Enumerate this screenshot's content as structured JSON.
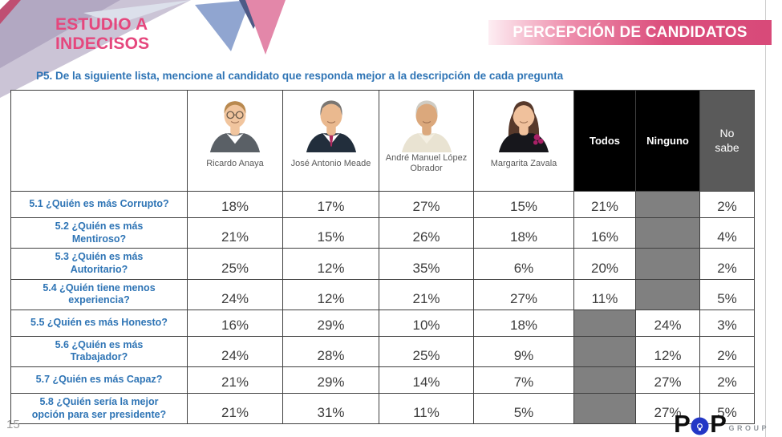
{
  "slide": {
    "kicker_line1": "ESTUDIO A",
    "kicker_line2": "INDECISOS",
    "banner_title": "PERCEPCIÓN DE CANDIDATOS",
    "question": "P5. De la siguiente lista, mencione al candidato que responda mejor a la descripción de cada pregunta",
    "page_number": "15",
    "logo": {
      "p1": "P",
      "p2": "P",
      "suffix": "GROUP"
    },
    "colors": {
      "brand_pink": "#DB4E7C",
      "kicker_pink": "#E5477D",
      "text_blue": "#2E74B5",
      "black_header": "#000000",
      "gray_header": "#5A5A5A",
      "muted_cell": "#808080",
      "logo_blue": "#2337C6"
    }
  },
  "table": {
    "candidates": [
      {
        "name": "Ricardo Anaya",
        "avatar": "ricardo-anaya-photo"
      },
      {
        "name": "José Antonio Meade",
        "avatar": "jose-antonio-meade-photo"
      },
      {
        "name": "André Manuel López Obrador",
        "avatar": "andres-manuel-lopez-obrador-photo"
      },
      {
        "name": "Margarita Zavala",
        "avatar": "margarita-zavala-photo"
      }
    ],
    "extra_columns": [
      {
        "label": "Todos",
        "style": "black"
      },
      {
        "label": "Ninguno",
        "style": "black"
      },
      {
        "label": "No sabe",
        "style": "gray"
      }
    ],
    "rows": [
      {
        "label": "5.1 ¿Quién es más Corrupto?",
        "values": [
          "18%",
          "17%",
          "27%",
          "15%",
          "21%",
          null,
          "2%"
        ]
      },
      {
        "label": "5.2 ¿Quién es más Mentiroso?",
        "values": [
          "21%",
          "15%",
          "26%",
          "18%",
          "16%",
          null,
          "4%"
        ]
      },
      {
        "label": "5.3 ¿Quién es más Autoritario?",
        "values": [
          "25%",
          "12%",
          "35%",
          "6%",
          "20%",
          null,
          "2%"
        ]
      },
      {
        "label": "5.4 ¿Quién tiene menos experiencia?",
        "values": [
          "24%",
          "12%",
          "21%",
          "27%",
          "11%",
          null,
          "5%"
        ]
      },
      {
        "label": "5.5 ¿Quién es más Honesto?",
        "values": [
          "16%",
          "29%",
          "10%",
          "18%",
          null,
          "24%",
          "3%"
        ]
      },
      {
        "label": "5.6 ¿Quién es más Trabajador?",
        "values": [
          "24%",
          "28%",
          "25%",
          "9%",
          null,
          "12%",
          "2%"
        ]
      },
      {
        "label": "5.7 ¿Quién es más Capaz?",
        "values": [
          "21%",
          "29%",
          "14%",
          "7%",
          null,
          "27%",
          "2%"
        ]
      },
      {
        "label": "5.8 ¿Quién sería la mejor opción para ser presidente?",
        "values": [
          "21%",
          "31%",
          "11%",
          "5%",
          null,
          "27%",
          "5%"
        ]
      }
    ]
  }
}
